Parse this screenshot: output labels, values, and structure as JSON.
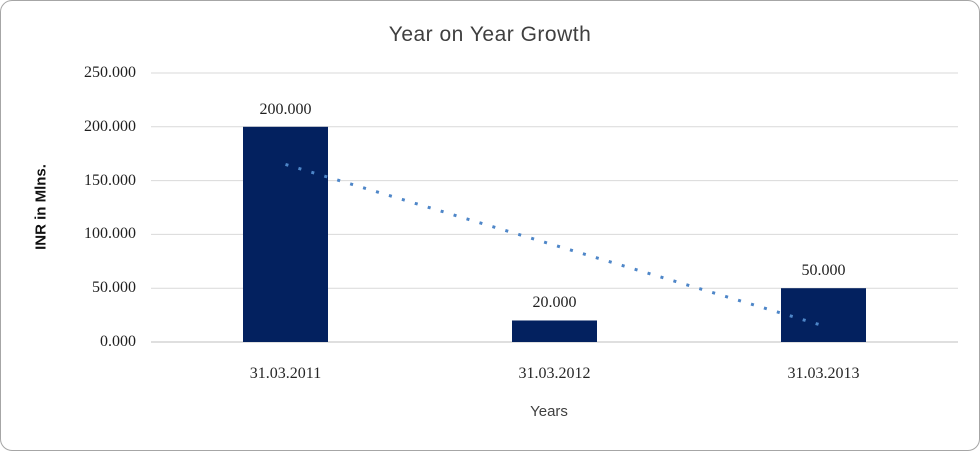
{
  "chart_data": {
    "type": "bar",
    "title": "Year on Year Growth",
    "xlabel": "Years",
    "ylabel": "INR in Mlns.",
    "categories": [
      "31.03.2011",
      "31.03.2012",
      "31.03.2013"
    ],
    "values": [
      200,
      20,
      50
    ],
    "value_labels": [
      "200.000",
      "20.000",
      "50.000"
    ],
    "y_ticks": [
      0,
      50,
      100,
      150,
      200,
      250
    ],
    "y_tick_labels": [
      "0.000",
      "50.000",
      "100.000",
      "150.000",
      "200.000",
      "250.000"
    ],
    "ylim": [
      0,
      250
    ],
    "grid": "horizontal",
    "legend": "none",
    "trendline": {
      "type": "linear",
      "style": "dotted"
    },
    "colors": {
      "bar": "#03215f",
      "trendline": "#4e86c8",
      "gridline": "#d9d9d9",
      "axis_line": "#bfbfbf",
      "title_text": "#3f3f3f",
      "axis_title_text": "#404040",
      "tick_text": "#1f1f1f",
      "data_label_text": "#1f1f1f",
      "border": "#a6a6a6",
      "background": "#ffffff"
    }
  }
}
